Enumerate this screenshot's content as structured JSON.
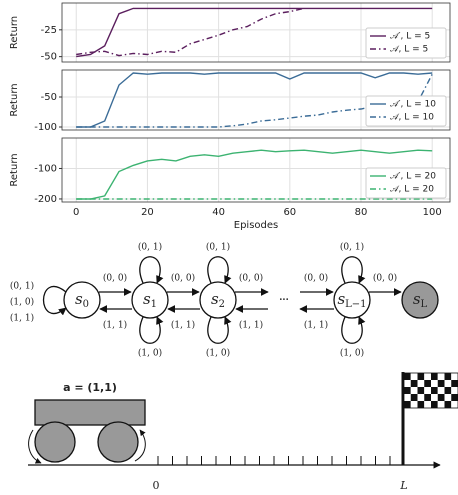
{
  "chart_data": [
    {
      "type": "line",
      "ylabel": "Return",
      "x": [
        0,
        4,
        8,
        12,
        16,
        20,
        24,
        28,
        32,
        36,
        40,
        44,
        48,
        52,
        56,
        60,
        64,
        68,
        72,
        76,
        80,
        84,
        88,
        92,
        96,
        100
      ],
      "series": [
        {
          "name": "𝒜′, L = 5",
          "color": "#5b1f5e",
          "style": "solid",
          "values": [
            -50,
            -48,
            -40,
            -10,
            -5,
            -5,
            -5,
            -5,
            -5,
            -5,
            -5,
            -5,
            -5,
            -5,
            -5,
            -5,
            -5,
            -5,
            -5,
            -5,
            -5,
            -5,
            -5,
            -5,
            -5,
            -5
          ]
        },
        {
          "name": "𝒜, L = 5",
          "color": "#5b1f5e",
          "style": "dashdot",
          "values": [
            -48,
            -46,
            -45,
            -49,
            -47,
            -48,
            -45,
            -46,
            -38,
            -34,
            -30,
            -25,
            -22,
            -15,
            -10,
            -8,
            -5,
            null,
            null,
            null,
            null,
            null,
            null,
            null,
            null,
            null
          ]
        }
      ],
      "xlim": [
        -4,
        105
      ],
      "ylim": [
        -55,
        0
      ],
      "xticks": [
        0,
        20,
        40,
        60,
        80,
        100
      ],
      "yticks": [
        -50,
        -25
      ],
      "grid": true,
      "legend": "lower right"
    },
    {
      "type": "line",
      "ylabel": "Return",
      "x": [
        0,
        4,
        8,
        12,
        16,
        20,
        24,
        28,
        32,
        36,
        40,
        44,
        48,
        52,
        56,
        60,
        64,
        68,
        72,
        76,
        80,
        84,
        88,
        92,
        96,
        100
      ],
      "series": [
        {
          "name": "𝒜′, L = 10",
          "color": "#3b6c97",
          "style": "solid",
          "values": [
            -100,
            -100,
            -90,
            -30,
            -10,
            -12,
            -10,
            -10,
            -10,
            -12,
            -10,
            -10,
            -10,
            -10,
            -10,
            -20,
            -10,
            -10,
            -10,
            -10,
            -10,
            -18,
            -10,
            -10,
            -12,
            -10
          ]
        },
        {
          "name": "𝒜, L = 10",
          "color": "#3b6c97",
          "style": "dashdot",
          "values": [
            -100,
            -100,
            -100,
            -100,
            -100,
            -100,
            -100,
            -100,
            -100,
            -100,
            -100,
            -98,
            -95,
            -90,
            -88,
            -85,
            -82,
            -80,
            -75,
            -72,
            -70,
            -65,
            -68,
            -62,
            -58,
            -12
          ]
        }
      ],
      "xlim": [
        -4,
        105
      ],
      "ylim": [
        -105,
        -5
      ],
      "xticks": [
        0,
        20,
        40,
        60,
        80,
        100
      ],
      "yticks": [
        -100,
        -50
      ],
      "grid": true,
      "legend": "lower right"
    },
    {
      "type": "line",
      "ylabel": "Return",
      "xlabel": "Episodes",
      "x": [
        0,
        4,
        8,
        12,
        16,
        20,
        24,
        28,
        32,
        36,
        40,
        44,
        48,
        52,
        56,
        60,
        64,
        68,
        72,
        76,
        80,
        84,
        88,
        92,
        96,
        100
      ],
      "series": [
        {
          "name": "𝒜′, L = 20",
          "color": "#3cb371",
          "style": "solid",
          "values": [
            -200,
            -200,
            -190,
            -110,
            -90,
            -75,
            -70,
            -75,
            -60,
            -55,
            -60,
            -50,
            -45,
            -40,
            -45,
            -42,
            -40,
            -45,
            -50,
            -45,
            -40,
            -45,
            -50,
            -45,
            -40,
            -42
          ]
        },
        {
          "name": "𝒜, L = 20",
          "color": "#3cb371",
          "style": "dashdot",
          "values": [
            -200,
            -200,
            -200,
            -200,
            -200,
            -200,
            -200,
            -200,
            -200,
            -200,
            -200,
            -200,
            -200,
            -200,
            -200,
            -200,
            -200,
            -200,
            -200,
            -200,
            -200,
            -200,
            -200,
            -200,
            -200,
            -200
          ]
        }
      ],
      "xlim": [
        -4,
        105
      ],
      "ylim": [
        -210,
        0
      ],
      "xticks": [
        0,
        20,
        40,
        60,
        80,
        100
      ],
      "yticks": [
        -200,
        -100
      ],
      "grid": true,
      "legend": "lower right"
    }
  ],
  "diagram": {
    "nodes": [
      {
        "name": "s",
        "sub": "0"
      },
      {
        "name": "s",
        "sub": "1"
      },
      {
        "name": "s",
        "sub": "2"
      },
      {
        "name": "s",
        "sub": "L−1"
      },
      {
        "name": "s",
        "sub": "L"
      }
    ],
    "ellipsis": "···",
    "edge_labels": [
      "(0, 1)",
      "(1, 0)",
      "(1, 1)",
      "(0, 1)",
      "(1, 0)",
      "(0, 1)",
      "(1, 0)",
      "(0, 1)",
      "(1, 0)",
      "(0, 0)",
      "(0, 0)",
      "(0, 0)",
      "(0, 0)",
      "(0, 0)",
      "(1, 1)",
      "(1, 1)",
      "(1, 1)",
      "(1, 1)"
    ]
  },
  "cart": {
    "action": "a = (1,1)",
    "origin": "0",
    "goal": "L"
  }
}
